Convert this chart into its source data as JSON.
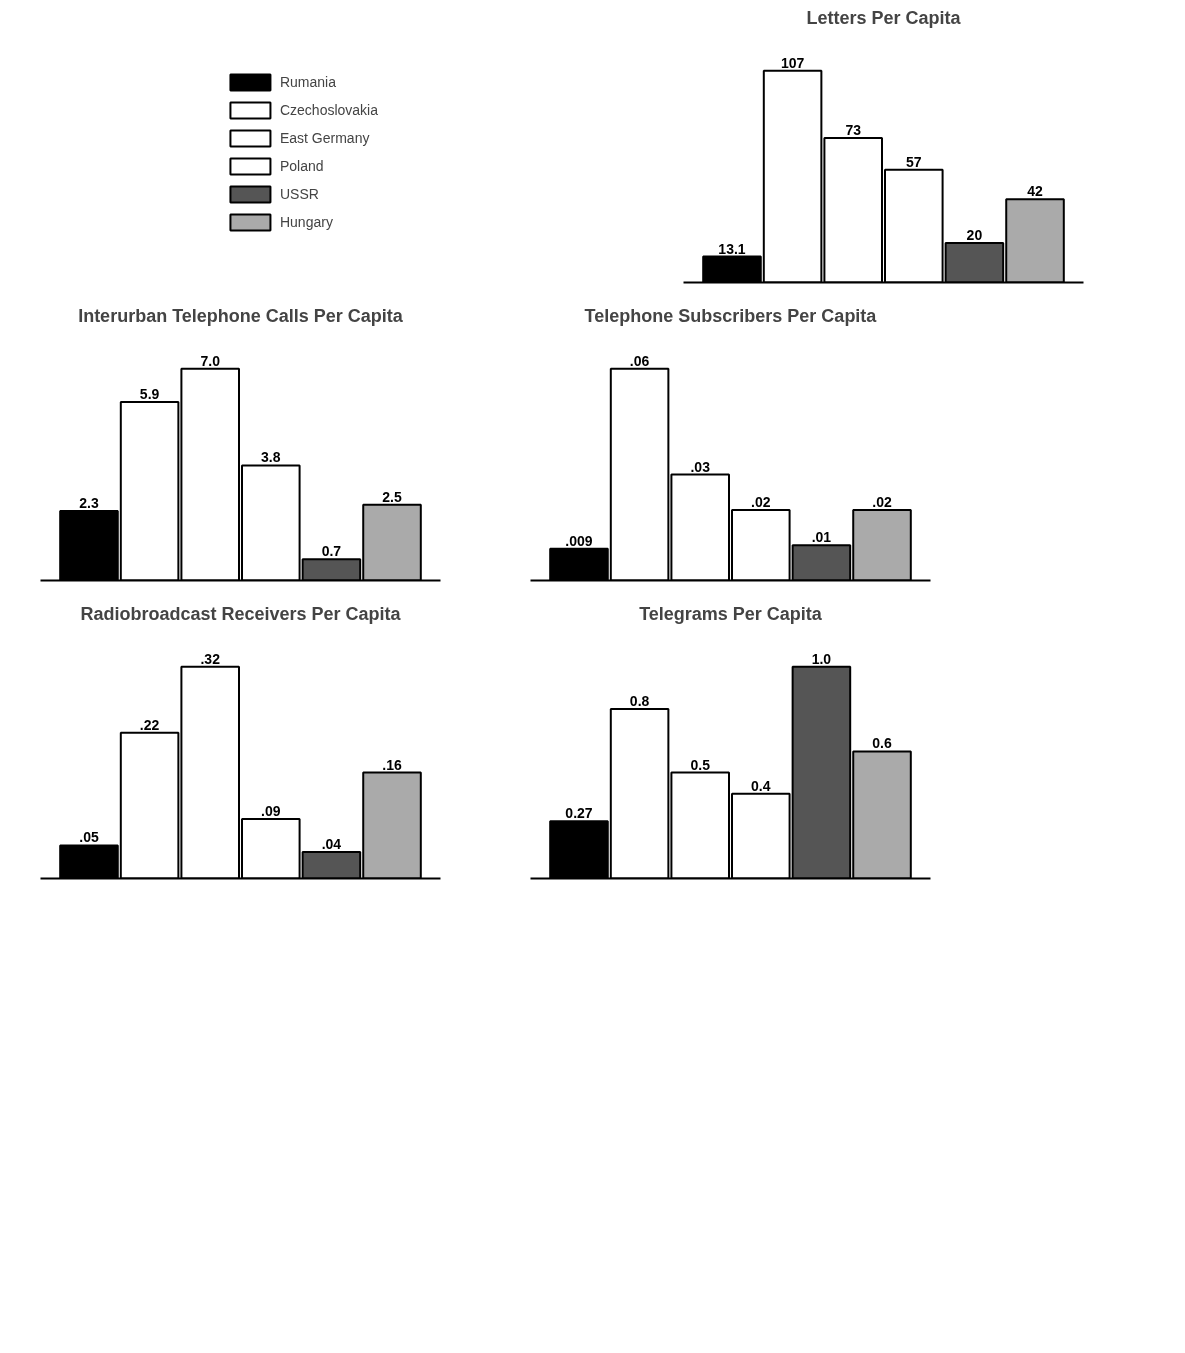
{
  "chart_data": [
    {
      "type": "bar",
      "title": "Letters Per Capita",
      "categories": [
        null
      ],
      "legend": "left",
      "series": [
        {
          "name": "Rumania",
          "color": "#000000",
          "values": [
            13.1
          ],
          "value_labels": [
            "13.1"
          ]
        },
        {
          "name": "Czechoslovakia",
          "color": "#ffffff",
          "values": [
            107
          ],
          "value_labels": [
            "107"
          ]
        },
        {
          "name": "East Germany",
          "color": "#ffffff",
          "values": [
            73
          ],
          "value_labels": [
            "73"
          ]
        },
        {
          "name": "Poland",
          "color": "#ffffff",
          "values": [
            57
          ],
          "value_labels": [
            "57"
          ]
        },
        {
          "name": "USSR",
          "color": "#555555",
          "values": [
            20
          ],
          "value_labels": [
            "20"
          ]
        },
        {
          "name": "Hungary",
          "color": "#aaaaaa",
          "values": [
            42
          ],
          "value_labels": [
            "42"
          ]
        }
      ]
    },
    {
      "type": "bar",
      "title": "Interurban Telephone Calls Per Capita",
      "categories": [
        null
      ],
      "series": [
        {
          "color": "#000000",
          "values": [
            2.3
          ],
          "value_labels": [
            "2.3"
          ]
        },
        {
          "color": "#ffffff",
          "values": [
            5.9
          ],
          "value_labels": [
            "5.9"
          ]
        },
        {
          "color": "#ffffff",
          "values": [
            7.0
          ],
          "value_labels": [
            "7.0"
          ]
        },
        {
          "color": "#ffffff",
          "values": [
            3.8
          ],
          "value_labels": [
            "3.8"
          ]
        },
        {
          "color": "#555555",
          "values": [
            0.7
          ],
          "value_labels": [
            "0.7"
          ]
        },
        {
          "color": "#aaaaaa",
          "values": [
            2.5
          ],
          "value_labels": [
            "2.5"
          ]
        }
      ]
    },
    {
      "type": "bar",
      "title": "Telephone Subscribers Per Capita",
      "categories": [
        null
      ],
      "series": [
        {
          "color": "#000000",
          "values": [
            0.009
          ],
          "value_labels": [
            ".009"
          ]
        },
        {
          "color": "#ffffff",
          "values": [
            0.06
          ],
          "value_labels": [
            ".06"
          ]
        },
        {
          "color": "#ffffff",
          "values": [
            0.03
          ],
          "value_labels": [
            ".03"
          ]
        },
        {
          "color": "#ffffff",
          "values": [
            0.02
          ],
          "value_labels": [
            ".02"
          ]
        },
        {
          "color": "#555555",
          "values": [
            0.01
          ],
          "value_labels": [
            ".01"
          ]
        },
        {
          "color": "#aaaaaa",
          "values": [
            0.02
          ],
          "value_labels": [
            ".02"
          ]
        }
      ]
    },
    {
      "type": "bar",
      "title": "Radiobroadcast Receivers Per Capita",
      "categories": [
        null
      ],
      "series": [
        {
          "color": "#000000",
          "values": [
            0.05
          ],
          "value_labels": [
            ".05"
          ]
        },
        {
          "color": "#ffffff",
          "values": [
            0.22
          ],
          "value_labels": [
            ".22"
          ]
        },
        {
          "color": "#ffffff",
          "values": [
            0.32
          ],
          "value_labels": [
            ".32"
          ]
        },
        {
          "color": "#ffffff",
          "values": [
            0.09
          ],
          "value_labels": [
            ".09"
          ]
        },
        {
          "color": "#555555",
          "values": [
            0.04
          ],
          "value_labels": [
            ".04"
          ]
        },
        {
          "color": "#aaaaaa",
          "values": [
            0.16
          ],
          "value_labels": [
            ".16"
          ]
        }
      ]
    },
    {
      "type": "bar",
      "title": "Telegrams Per Capita",
      "categories": [
        null
      ],
      "series": [
        {
          "color": "#000000",
          "values": [
            0.27
          ],
          "value_labels": [
            "0.27"
          ]
        },
        {
          "color": "#ffffff",
          "values": [
            0.8
          ],
          "value_labels": [
            "0.8"
          ]
        },
        {
          "color": "#ffffff",
          "values": [
            0.5
          ],
          "value_labels": [
            "0.5"
          ]
        },
        {
          "color": "#ffffff",
          "values": [
            0.4
          ],
          "value_labels": [
            "0.4"
          ]
        },
        {
          "color": "#555555",
          "values": [
            1.0
          ],
          "value_labels": [
            "1.0"
          ]
        },
        {
          "color": "#aaaaaa",
          "values": [
            0.6
          ],
          "value_labels": [
            "0.6"
          ]
        }
      ]
    }
  ]
}
